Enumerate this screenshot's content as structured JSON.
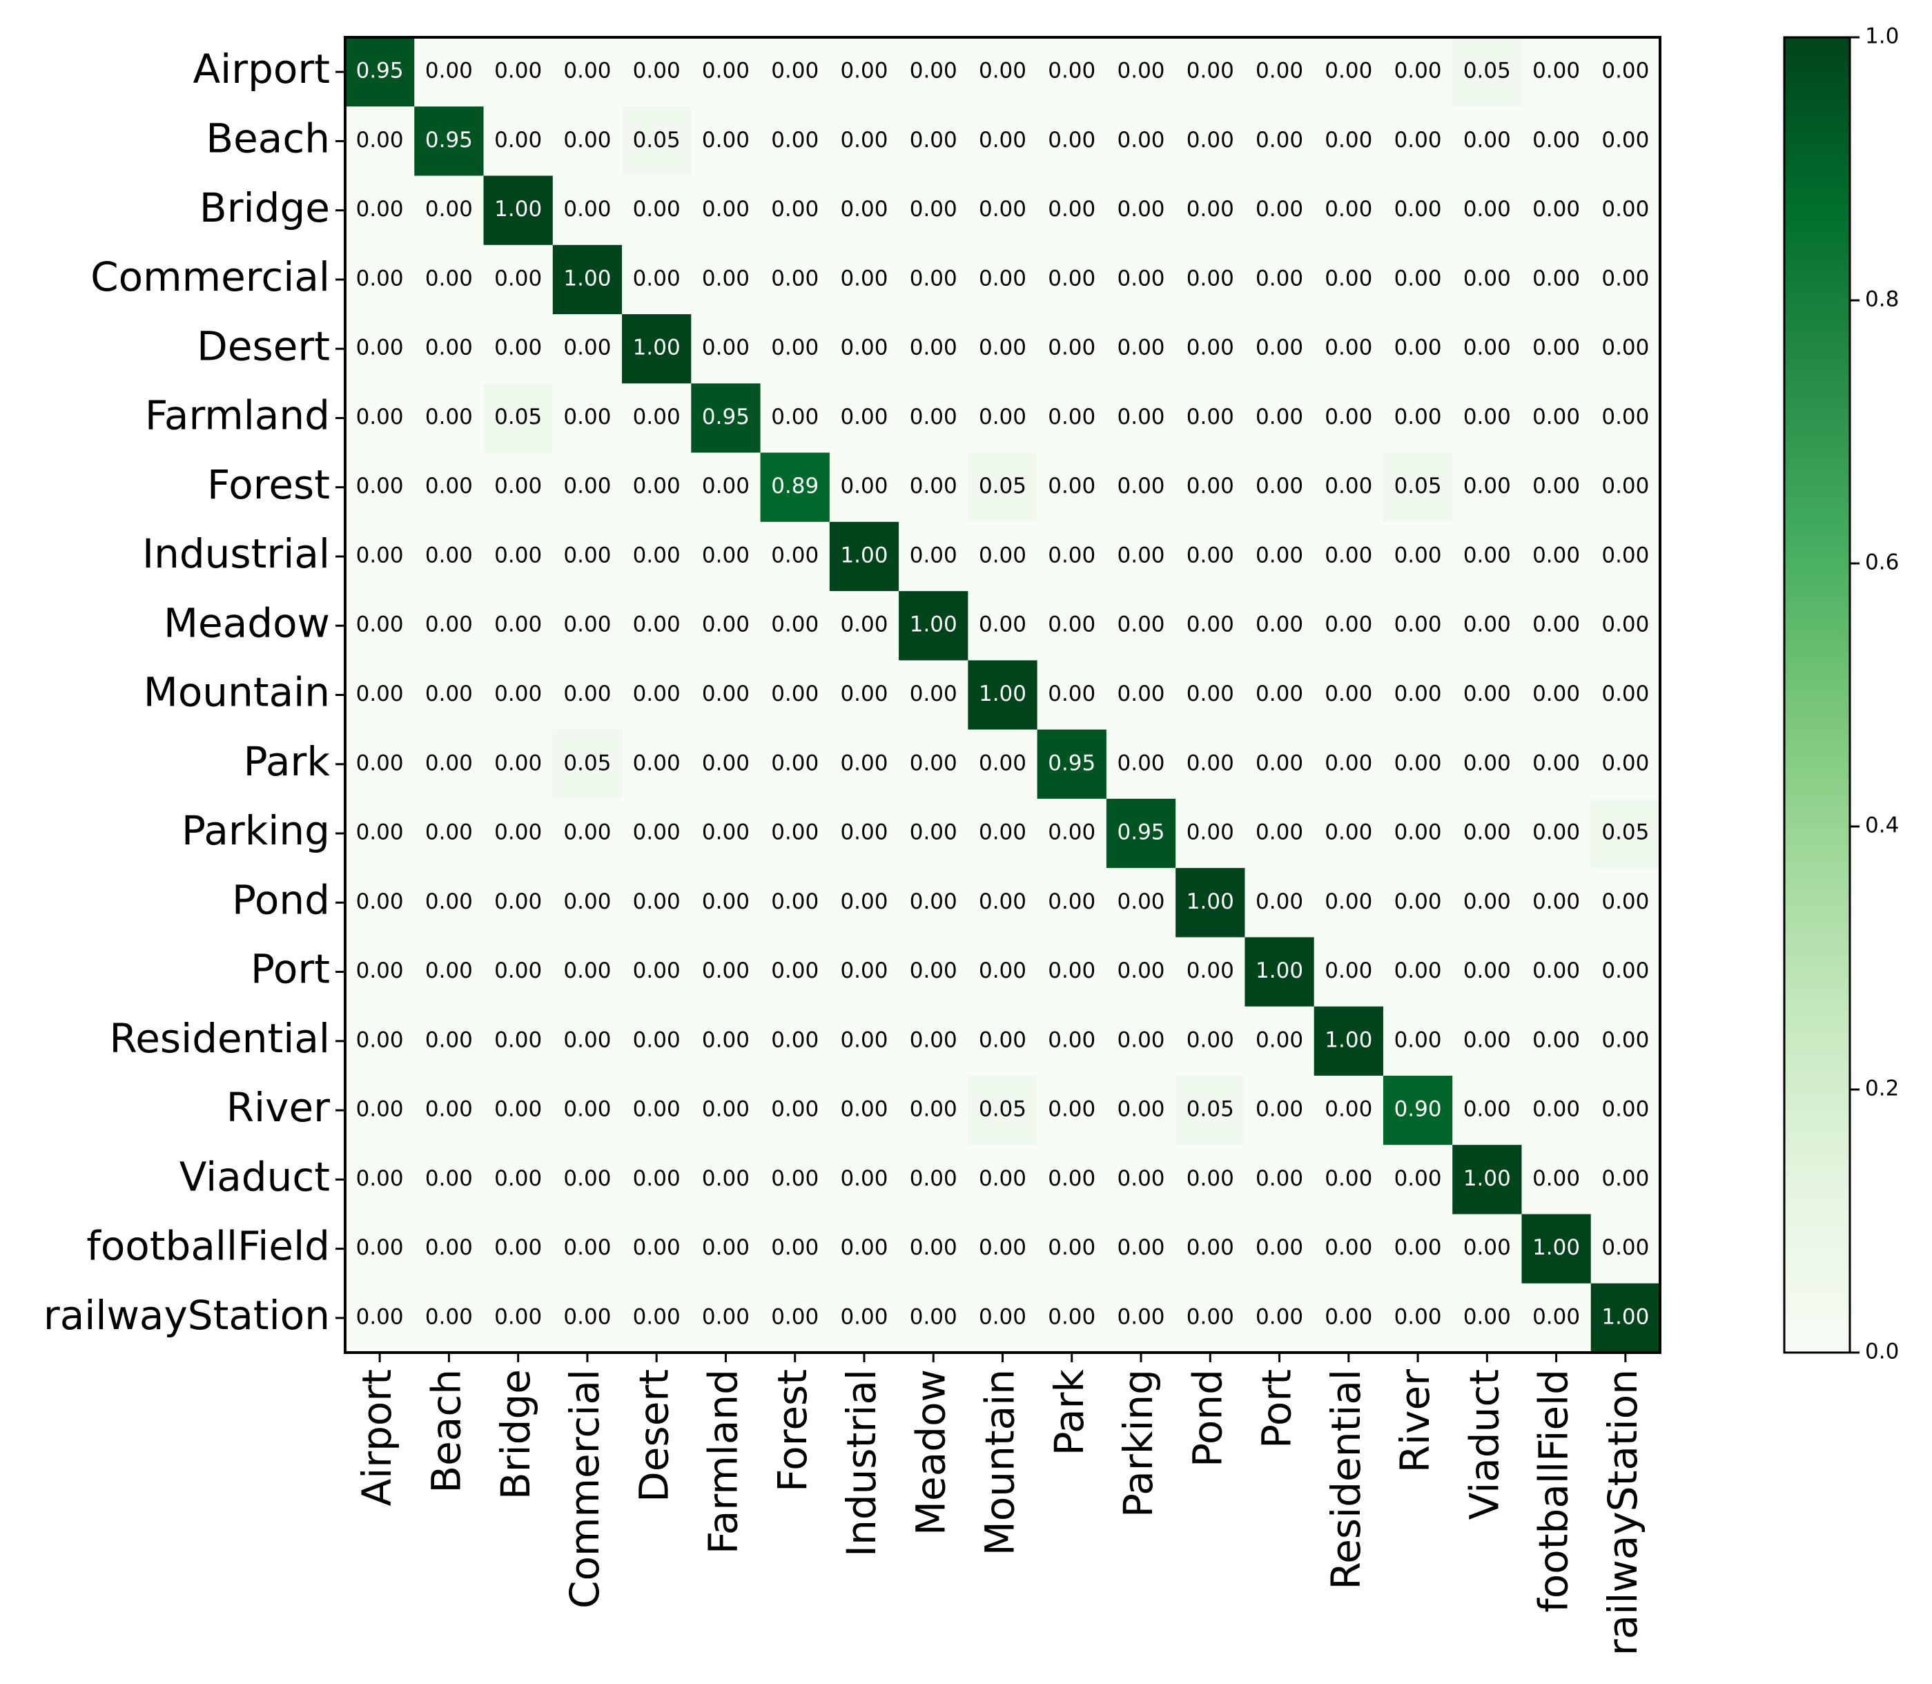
{
  "chart_data": {
    "type": "heatmap",
    "title": "",
    "xlabel": "",
    "ylabel": "",
    "categories": [
      "Airport",
      "Beach",
      "Bridge",
      "Commercial",
      "Desert",
      "Farmland",
      "Forest",
      "Industrial",
      "Meadow",
      "Mountain",
      "Park",
      "Parking",
      "Pond",
      "Port",
      "Residential",
      "River",
      "Viaduct",
      "footballField",
      "railwayStation"
    ],
    "matrix": [
      [
        0.95,
        0.0,
        0.0,
        0.0,
        0.0,
        0.0,
        0.0,
        0.0,
        0.0,
        0.0,
        0.0,
        0.0,
        0.0,
        0.0,
        0.0,
        0.0,
        0.05,
        0.0,
        0.0
      ],
      [
        0.0,
        0.95,
        0.0,
        0.0,
        0.05,
        0.0,
        0.0,
        0.0,
        0.0,
        0.0,
        0.0,
        0.0,
        0.0,
        0.0,
        0.0,
        0.0,
        0.0,
        0.0,
        0.0
      ],
      [
        0.0,
        0.0,
        1.0,
        0.0,
        0.0,
        0.0,
        0.0,
        0.0,
        0.0,
        0.0,
        0.0,
        0.0,
        0.0,
        0.0,
        0.0,
        0.0,
        0.0,
        0.0,
        0.0
      ],
      [
        0.0,
        0.0,
        0.0,
        1.0,
        0.0,
        0.0,
        0.0,
        0.0,
        0.0,
        0.0,
        0.0,
        0.0,
        0.0,
        0.0,
        0.0,
        0.0,
        0.0,
        0.0,
        0.0
      ],
      [
        0.0,
        0.0,
        0.0,
        0.0,
        1.0,
        0.0,
        0.0,
        0.0,
        0.0,
        0.0,
        0.0,
        0.0,
        0.0,
        0.0,
        0.0,
        0.0,
        0.0,
        0.0,
        0.0
      ],
      [
        0.0,
        0.0,
        0.05,
        0.0,
        0.0,
        0.95,
        0.0,
        0.0,
        0.0,
        0.0,
        0.0,
        0.0,
        0.0,
        0.0,
        0.0,
        0.0,
        0.0,
        0.0,
        0.0
      ],
      [
        0.0,
        0.0,
        0.0,
        0.0,
        0.0,
        0.0,
        0.89,
        0.0,
        0.0,
        0.05,
        0.0,
        0.0,
        0.0,
        0.0,
        0.0,
        0.05,
        0.0,
        0.0,
        0.0
      ],
      [
        0.0,
        0.0,
        0.0,
        0.0,
        0.0,
        0.0,
        0.0,
        1.0,
        0.0,
        0.0,
        0.0,
        0.0,
        0.0,
        0.0,
        0.0,
        0.0,
        0.0,
        0.0,
        0.0
      ],
      [
        0.0,
        0.0,
        0.0,
        0.0,
        0.0,
        0.0,
        0.0,
        0.0,
        1.0,
        0.0,
        0.0,
        0.0,
        0.0,
        0.0,
        0.0,
        0.0,
        0.0,
        0.0,
        0.0
      ],
      [
        0.0,
        0.0,
        0.0,
        0.0,
        0.0,
        0.0,
        0.0,
        0.0,
        0.0,
        1.0,
        0.0,
        0.0,
        0.0,
        0.0,
        0.0,
        0.0,
        0.0,
        0.0,
        0.0
      ],
      [
        0.0,
        0.0,
        0.0,
        0.05,
        0.0,
        0.0,
        0.0,
        0.0,
        0.0,
        0.0,
        0.95,
        0.0,
        0.0,
        0.0,
        0.0,
        0.0,
        0.0,
        0.0,
        0.0
      ],
      [
        0.0,
        0.0,
        0.0,
        0.0,
        0.0,
        0.0,
        0.0,
        0.0,
        0.0,
        0.0,
        0.0,
        0.95,
        0.0,
        0.0,
        0.0,
        0.0,
        0.0,
        0.0,
        0.05
      ],
      [
        0.0,
        0.0,
        0.0,
        0.0,
        0.0,
        0.0,
        0.0,
        0.0,
        0.0,
        0.0,
        0.0,
        0.0,
        1.0,
        0.0,
        0.0,
        0.0,
        0.0,
        0.0,
        0.0
      ],
      [
        0.0,
        0.0,
        0.0,
        0.0,
        0.0,
        0.0,
        0.0,
        0.0,
        0.0,
        0.0,
        0.0,
        0.0,
        0.0,
        1.0,
        0.0,
        0.0,
        0.0,
        0.0,
        0.0
      ],
      [
        0.0,
        0.0,
        0.0,
        0.0,
        0.0,
        0.0,
        0.0,
        0.0,
        0.0,
        0.0,
        0.0,
        0.0,
        0.0,
        0.0,
        1.0,
        0.0,
        0.0,
        0.0,
        0.0
      ],
      [
        0.0,
        0.0,
        0.0,
        0.0,
        0.0,
        0.0,
        0.0,
        0.0,
        0.0,
        0.05,
        0.0,
        0.0,
        0.05,
        0.0,
        0.0,
        0.9,
        0.0,
        0.0,
        0.0
      ],
      [
        0.0,
        0.0,
        0.0,
        0.0,
        0.0,
        0.0,
        0.0,
        0.0,
        0.0,
        0.0,
        0.0,
        0.0,
        0.0,
        0.0,
        0.0,
        0.0,
        1.0,
        0.0,
        0.0
      ],
      [
        0.0,
        0.0,
        0.0,
        0.0,
        0.0,
        0.0,
        0.0,
        0.0,
        0.0,
        0.0,
        0.0,
        0.0,
        0.0,
        0.0,
        0.0,
        0.0,
        0.0,
        1.0,
        0.0
      ],
      [
        0.0,
        0.0,
        0.0,
        0.0,
        0.0,
        0.0,
        0.0,
        0.0,
        0.0,
        0.0,
        0.0,
        0.0,
        0.0,
        0.0,
        0.0,
        0.0,
        0.0,
        0.0,
        1.0
      ]
    ],
    "value_format": "2 decimals",
    "colormap": "Greens",
    "colors": {
      "low": "#f7fcf5",
      "high": "#00441b"
    },
    "colorbar": {
      "range": [
        0.0,
        1.0
      ],
      "ticks": [
        "0.0",
        "0.2",
        "0.4",
        "0.6",
        "0.8",
        "1.0"
      ]
    },
    "grid": false
  }
}
